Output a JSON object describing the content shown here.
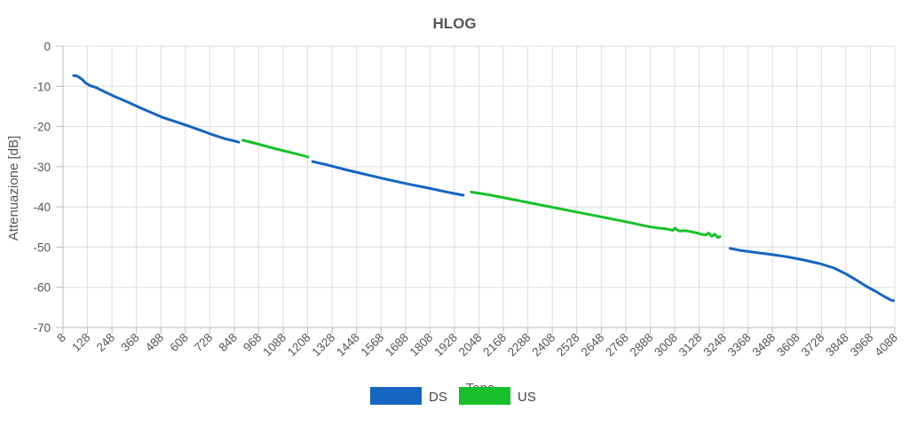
{
  "chart_data": {
    "type": "line",
    "title": "HLOG",
    "xlabel": "Tono",
    "ylabel": "Attenuazione [dB]",
    "xlim": [
      8,
      4088
    ],
    "ylim": [
      -70,
      0
    ],
    "grid": true,
    "legend_position": "bottom",
    "x_ticks": [
      8,
      128,
      248,
      368,
      488,
      608,
      728,
      848,
      968,
      1088,
      1208,
      1328,
      1448,
      1568,
      1688,
      1808,
      1928,
      2048,
      2168,
      2288,
      2408,
      2528,
      2648,
      2768,
      2888,
      3008,
      3128,
      3248,
      3368,
      3488,
      3608,
      3728,
      3848,
      3968,
      4088
    ],
    "y_ticks": [
      0,
      -10,
      -20,
      -30,
      -40,
      -50,
      -60,
      -70
    ],
    "colors": {
      "DS": "#1565C0",
      "US": "#17C02A"
    },
    "series": [
      {
        "name": "DS",
        "color": "#1565C0",
        "segments": [
          [
            [
              60,
              -7.3
            ],
            [
              75,
              -7.4
            ],
            [
              88,
              -7.8
            ],
            [
              100,
              -8.2
            ],
            [
              120,
              -9.2
            ],
            [
              140,
              -9.8
            ],
            [
              170,
              -10.3
            ],
            [
              210,
              -11.3
            ],
            [
              260,
              -12.5
            ],
            [
              320,
              -13.8
            ],
            [
              380,
              -15.2
            ],
            [
              440,
              -16.5
            ],
            [
              500,
              -17.8
            ],
            [
              560,
              -18.8
            ],
            [
              620,
              -19.8
            ],
            [
              680,
              -20.9
            ],
            [
              740,
              -22.0
            ],
            [
              800,
              -23.0
            ],
            [
              850,
              -23.6
            ],
            [
              870,
              -23.9
            ]
          ],
          [
            [
              1232,
              -28.7
            ],
            [
              1300,
              -29.5
            ],
            [
              1400,
              -30.8
            ],
            [
              1500,
              -32.0
            ],
            [
              1600,
              -33.2
            ],
            [
              1700,
              -34.3
            ],
            [
              1800,
              -35.3
            ],
            [
              1900,
              -36.4
            ],
            [
              1972,
              -37.1
            ]
          ],
          [
            [
              3280,
              -50.3
            ],
            [
              3330,
              -50.8
            ],
            [
              3400,
              -51.3
            ],
            [
              3480,
              -51.8
            ],
            [
              3560,
              -52.4
            ],
            [
              3640,
              -53.2
            ],
            [
              3720,
              -54.1
            ],
            [
              3790,
              -55.2
            ],
            [
              3850,
              -56.7
            ],
            [
              3900,
              -58.2
            ],
            [
              3950,
              -59.8
            ],
            [
              4000,
              -61.2
            ],
            [
              4040,
              -62.4
            ],
            [
              4070,
              -63.2
            ],
            [
              4082,
              -63.3
            ]
          ]
        ]
      },
      {
        "name": "US",
        "color": "#17C02A",
        "segments": [
          [
            [
              890,
              -23.4
            ],
            [
              960,
              -24.3
            ],
            [
              1040,
              -25.4
            ],
            [
              1120,
              -26.4
            ],
            [
              1190,
              -27.3
            ],
            [
              1210,
              -27.6
            ]
          ],
          [
            [
              2010,
              -36.3
            ],
            [
              2100,
              -37.0
            ],
            [
              2200,
              -38.0
            ],
            [
              2300,
              -39.0
            ],
            [
              2400,
              -40.0
            ],
            [
              2500,
              -41.0
            ],
            [
              2600,
              -42.0
            ],
            [
              2700,
              -43.0
            ],
            [
              2800,
              -44.0
            ],
            [
              2880,
              -44.9
            ],
            [
              2920,
              -45.2
            ],
            [
              2960,
              -45.4
            ],
            [
              3000,
              -45.8
            ],
            [
              3010,
              -45.3
            ],
            [
              3030,
              -46.0
            ],
            [
              3060,
              -45.9
            ],
            [
              3090,
              -46.2
            ],
            [
              3120,
              -46.5
            ],
            [
              3140,
              -46.8
            ],
            [
              3160,
              -47.0
            ],
            [
              3175,
              -46.5
            ],
            [
              3190,
              -47.3
            ],
            [
              3205,
              -46.8
            ],
            [
              3220,
              -47.6
            ],
            [
              3230,
              -47.4
            ]
          ]
        ]
      }
    ]
  }
}
